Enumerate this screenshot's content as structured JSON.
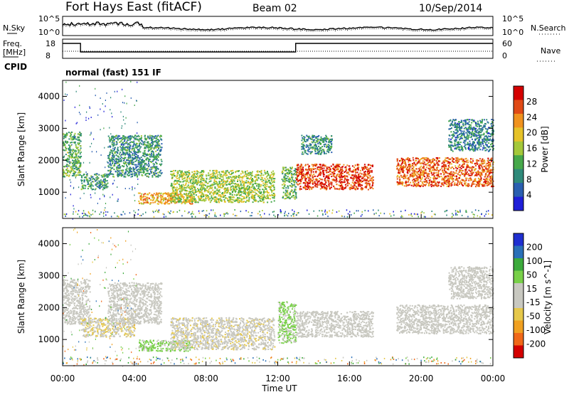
{
  "header": {
    "title": "Fort Hays East (fitACF)",
    "beam": "Beam 02",
    "date": "10/Sep/2014"
  },
  "param_panels": {
    "nsky_label": "N.Sky",
    "nsearch_label": "N.Search",
    "noise_ticks": [
      "10^5",
      "10^0"
    ],
    "noise_ticks_right": [
      "10^5",
      "10^0"
    ],
    "freq_label": "Freq.",
    "freq_unit": "[MHz]",
    "freq_ticks": [
      "18",
      "8"
    ],
    "nave_label": "Nave",
    "nave_ticks": [
      "60",
      "0"
    ],
    "cpid_label": "CPID",
    "cpid_text": "normal (fast) 151 IF"
  },
  "colors": {
    "power_scale": [
      "#1f1fd8",
      "#2a5fb0",
      "#2f8a7a",
      "#46a84a",
      "#a4c83a",
      "#e6c228",
      "#f0921e",
      "#e04a16",
      "#d40000"
    ],
    "velocity_scale": [
      "#d40000",
      "#f06818",
      "#f0a020",
      "#e6c84a",
      "#c8c8c0",
      "#c8c8c0",
      "#78d048",
      "#3caa3c",
      "#2a70b8",
      "#1f2fd0"
    ]
  },
  "chart_data": [
    {
      "type": "heatmap",
      "name": "power",
      "xlabel": "",
      "ylabel": "Slant Range [km]",
      "x_ticks": [],
      "y_ticks": [
        1000,
        2000,
        3000,
        4000
      ],
      "xlim": [
        0,
        24
      ],
      "ylim": [
        180,
        4500
      ],
      "colorbar_label": "Power [dB]",
      "colorbar_ticks": [
        "4",
        "8",
        "12",
        "16",
        "20",
        "24",
        "28"
      ],
      "colorbar_range": [
        0,
        30
      ],
      "regions": [
        {
          "x": [
            0.0,
            1.0
          ],
          "y": [
            1500,
            2900
          ],
          "level": 12
        },
        {
          "x": [
            1.0,
            2.5
          ],
          "y": [
            1100,
            1600
          ],
          "level": 10
        },
        {
          "x": [
            2.5,
            5.5
          ],
          "y": [
            1500,
            2800
          ],
          "level": 9
        },
        {
          "x": [
            4.2,
            7.2
          ],
          "y": [
            650,
            1000
          ],
          "level": 20
        },
        {
          "x": [
            6.0,
            11.8
          ],
          "y": [
            700,
            1700
          ],
          "level": 15
        },
        {
          "x": [
            12.2,
            13.0
          ],
          "y": [
            800,
            1800
          ],
          "level": 12
        },
        {
          "x": [
            13.0,
            17.3
          ],
          "y": [
            1100,
            1900
          ],
          "level": 26
        },
        {
          "x": [
            13.3,
            15.0
          ],
          "y": [
            2200,
            2800
          ],
          "level": 9
        },
        {
          "x": [
            18.6,
            24.0
          ],
          "y": [
            1200,
            2100
          ],
          "level": 24
        },
        {
          "x": [
            21.5,
            24.0
          ],
          "y": [
            2300,
            3300
          ],
          "level": 8
        }
      ]
    },
    {
      "type": "heatmap",
      "name": "velocity",
      "xlabel": "Time UT",
      "ylabel": "Slant Range [km]",
      "x_ticks": [
        "00:00",
        "04:00",
        "08:00",
        "12:00",
        "16:00",
        "20:00",
        "00:00"
      ],
      "y_ticks": [
        1000,
        2000,
        3000,
        4000
      ],
      "xlim": [
        0,
        24
      ],
      "ylim": [
        180,
        4500
      ],
      "colorbar_label": "Velocity [m s^-1]",
      "colorbar_ticks": [
        "200",
        "100",
        "50",
        "15",
        "-15",
        "-50",
        "-100",
        "-200"
      ],
      "colorbar_range": [
        -250,
        250
      ],
      "regions": [
        {
          "x": [
            0.0,
            1.5
          ],
          "y": [
            1500,
            2900
          ],
          "level": 0
        },
        {
          "x": [
            1.0,
            4.0
          ],
          "y": [
            1100,
            1700
          ],
          "level": -40
        },
        {
          "x": [
            2.5,
            5.5
          ],
          "y": [
            1500,
            2800
          ],
          "level": 0
        },
        {
          "x": [
            4.2,
            7.2
          ],
          "y": [
            650,
            1000
          ],
          "level": 60
        },
        {
          "x": [
            6.0,
            11.8
          ],
          "y": [
            700,
            1700
          ],
          "level": -30
        },
        {
          "x": [
            12.0,
            13.0
          ],
          "y": [
            900,
            2200
          ],
          "level": 60
        },
        {
          "x": [
            13.0,
            17.3
          ],
          "y": [
            1100,
            1900
          ],
          "level": 0
        },
        {
          "x": [
            18.6,
            24.0
          ],
          "y": [
            1200,
            2100
          ],
          "level": 0
        },
        {
          "x": [
            21.5,
            24.0
          ],
          "y": [
            2300,
            3300
          ],
          "level": 0
        }
      ]
    }
  ]
}
